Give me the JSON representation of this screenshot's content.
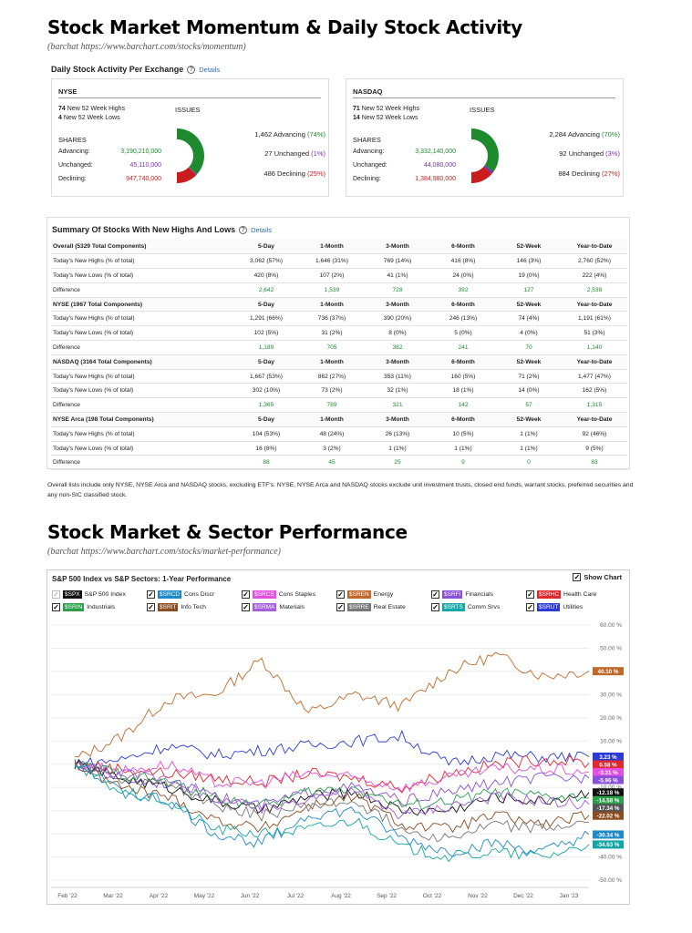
{
  "heading1": "Stock Market Momentum & Daily Stock Activity",
  "source1": "(barchat https://www.barchart.com/stocks/momentum)",
  "daily": {
    "title": "Daily Stock Activity Per Exchange",
    "details": "Details",
    "nyse": {
      "name": "NYSE",
      "highs_num": "74",
      "highs_txt": "New 52 Week Highs",
      "lows_num": "4",
      "lows_txt": "New 52 Week Lows",
      "issues": "ISSUES",
      "shares": "SHARES",
      "advancing_lbl": "Advancing:",
      "unchanged_lbl": "Unchanged:",
      "declining_lbl": "Declining:",
      "advancing_val": "3,190,210,000",
      "unchanged_val": "45,110,000",
      "declining_val": "947,740,000",
      "iss_adv": "1,462 Advancing",
      "iss_adv_pct": "(74%)",
      "iss_unc": "27 Unchanged",
      "iss_unc_pct": "(1%)",
      "iss_dec": "486 Declining",
      "iss_dec_pct": "(25%)",
      "pct": [
        74,
        1,
        25
      ]
    },
    "nasdaq": {
      "name": "NASDAQ",
      "highs_num": "71",
      "highs_txt": "New 52 Week Highs",
      "lows_num": "14",
      "lows_txt": "New 52 Week Lows",
      "issues": "ISSUES",
      "shares": "SHARES",
      "advancing_lbl": "Advancing:",
      "unchanged_lbl": "Unchanged:",
      "declining_lbl": "Declining:",
      "advancing_val": "3,332,140,000",
      "unchanged_val": "44,080,000",
      "declining_val": "1,384,980,000",
      "iss_adv": "2,284 Advancing",
      "iss_adv_pct": "(70%)",
      "iss_unc": "92 Unchanged",
      "iss_unc_pct": "(3%)",
      "iss_dec": "884 Declining",
      "iss_dec_pct": "(27%)",
      "pct": [
        70,
        3,
        27
      ]
    },
    "colors": {
      "advancing": "#1d8a2e",
      "unchanged": "#7b2fb5",
      "declining": "#c91c1c"
    }
  },
  "summary": {
    "title": "Summary Of Stocks With New Highs And Lows",
    "details": "Details",
    "rows": [
      [
        "Overall (5329 Total Components)",
        "5-Day",
        "1-Month",
        "3-Month",
        "6-Month",
        "52-Week",
        "Year-to-Date"
      ],
      [
        "Today's New Highs (% of total)",
        "3,062 (57%)",
        "1,646 (31%)",
        "769 (14%)",
        "416 (8%)",
        "146 (3%)",
        "2,760 (52%)"
      ],
      [
        "Today's New Lows (% of total)",
        "420 (8%)",
        "107 (2%)",
        "41 (1%)",
        "24 (0%)",
        "19 (0%)",
        "222 (4%)"
      ],
      [
        "Difference",
        "2,642",
        "1,539",
        "728",
        "392",
        "127",
        "2,538"
      ],
      [
        "NYSE (1967 Total Components)",
        "5-Day",
        "1-Month",
        "3-Month",
        "6-Month",
        "52-Week",
        "Year-to-Date"
      ],
      [
        "Today's New Highs (% of total)",
        "1,291 (66%)",
        "736 (37%)",
        "390 (20%)",
        "246 (13%)",
        "74 (4%)",
        "1,191 (61%)"
      ],
      [
        "Today's New Lows (% of total)",
        "102 (5%)",
        "31 (2%)",
        "8 (0%)",
        "5 (0%)",
        "4 (0%)",
        "51 (3%)"
      ],
      [
        "Difference",
        "1,189",
        "705",
        "382",
        "241",
        "70",
        "1,140"
      ],
      [
        "NASDAQ (3164 Total Components)",
        "5-Day",
        "1-Month",
        "3-Month",
        "6-Month",
        "52-Week",
        "Year-to-Date"
      ],
      [
        "Today's New Highs (% of total)",
        "1,667 (53%)",
        "862 (27%)",
        "353 (11%)",
        "160 (5%)",
        "71 (2%)",
        "1,477 (47%)"
      ],
      [
        "Today's New Lows (% of total)",
        "302 (10%)",
        "73 (2%)",
        "32 (1%)",
        "18 (1%)",
        "14 (0%)",
        "162 (5%)"
      ],
      [
        "Difference",
        "1,365",
        "789",
        "321",
        "142",
        "57",
        "1,315"
      ],
      [
        "NYSE Arca (198 Total Components)",
        "5-Day",
        "1-Month",
        "3-Month",
        "6-Month",
        "52-Week",
        "Year-to-Date"
      ],
      [
        "Today's New Highs (% of total)",
        "104 (53%)",
        "48 (24%)",
        "26 (13%)",
        "10 (5%)",
        "1 (1%)",
        "92 (46%)"
      ],
      [
        "Today's New Lows (% of total)",
        "16 (8%)",
        "3 (2%)",
        "1 (1%)",
        "1 (1%)",
        "1 (1%)",
        "9 (5%)"
      ],
      [
        "Difference",
        "88",
        "45",
        "25",
        "9",
        "0",
        "83"
      ]
    ]
  },
  "note": "Overall lists include only NYSE, NYSE Arca and NASDAQ stocks, excluding ETF's. NYSE, NYSE Arca and NASDAQ stocks exclude unit investment trusts, closed end funds, warrant stocks, preferred securities and any non-SIC classified stock.",
  "heading2": "Stock Market & Sector Performance",
  "source2": "(barchat https://www.barchart.com/stocks/market-performance)",
  "perf": {
    "title": "S&P 500 Index vs S&P Sectors: 1-Year Performance",
    "show_chart": "Show Chart",
    "legend": [
      [
        {
          "tick": "$SPX",
          "name": "S&P 500 Index",
          "color": "#111111",
          "checked": false
        },
        {
          "tick": "$SRCD",
          "name": "Cons Discr",
          "color": "#1e88c8",
          "checked": true
        },
        {
          "tick": "$SRCS",
          "name": "Cons Staples",
          "color": "#e34fe0",
          "checked": true
        },
        {
          "tick": "$SREN",
          "name": "Energy",
          "color": "#c0692a",
          "checked": true
        },
        {
          "tick": "$SRFI",
          "name": "Financials",
          "color": "#8a4fd8",
          "checked": true
        },
        {
          "tick": "$SRHC",
          "name": "Health Care",
          "color": "#e0262f",
          "checked": true
        }
      ],
      [
        {
          "tick": "$SRIN",
          "name": "Industrials",
          "color": "#2ba04a",
          "checked": true
        },
        {
          "tick": "$SRIT",
          "name": "Info Tech",
          "color": "#8b4d1f",
          "checked": true
        },
        {
          "tick": "$SRMA",
          "name": "Materials",
          "color": "#a65ee0",
          "checked": true
        },
        {
          "tick": "$SRRE",
          "name": "Real Estate",
          "color": "#777777",
          "checked": true
        },
        {
          "tick": "$SRTS",
          "name": "Comm Srvs",
          "color": "#14a6a6",
          "checked": true
        },
        {
          "tick": "$SRUT",
          "name": "Utilities",
          "color": "#2a3ad8",
          "checked": true
        }
      ]
    ]
  },
  "chart_data": {
    "type": "line",
    "title": "S&P 500 Index vs S&P Sectors: 1-Year Performance",
    "x": [
      "Feb '22",
      "Mar '22",
      "Apr '22",
      "May '22",
      "Jun '22",
      "Jul '22",
      "Aug '22",
      "Sep '22",
      "Oct '22",
      "Nov '22",
      "Dec '22",
      "Jan '23"
    ],
    "yticks": [
      "60.00 %",
      "50.00 %",
      "40.00 %",
      "30.00 %",
      "20.00 %",
      "10.00 %",
      "0.00 %",
      "-10.00 %",
      "-20.00 %",
      "-30.00 %",
      "-40.00 %",
      "-50.00 %"
    ],
    "ylim": [
      -50,
      60
    ],
    "series": [
      {
        "name": "Energy",
        "color": "#c0692a",
        "values": [
          2,
          12,
          28,
          30,
          45,
          22,
          30,
          25,
          40,
          47,
          38,
          40.1
        ]
      },
      {
        "name": "Utilities",
        "color": "#2a3ad8",
        "values": [
          0,
          2,
          8,
          4,
          6,
          8,
          10,
          12,
          0,
          4,
          3,
          3.23
        ]
      },
      {
        "name": "Health Care",
        "color": "#e0262f",
        "values": [
          0,
          -2,
          -4,
          -6,
          -8,
          -4,
          -6,
          -10,
          -4,
          0,
          2,
          0.58
        ]
      },
      {
        "name": "Cons Staples",
        "color": "#e34fe0",
        "values": [
          0,
          -3,
          0,
          -8,
          -8,
          -4,
          -6,
          -10,
          -6,
          -2,
          -2,
          -3.31
        ]
      },
      {
        "name": "Financials",
        "color": "#8a4fd8",
        "values": [
          0,
          -6,
          -8,
          -14,
          -18,
          -12,
          -10,
          -16,
          -12,
          -8,
          -6,
          -5.96
        ]
      },
      {
        "name": "S&P 500 Index",
        "color": "#111111",
        "values": [
          0,
          -6,
          -10,
          -16,
          -20,
          -14,
          -12,
          -20,
          -20,
          -14,
          -16,
          -12.18
        ]
      },
      {
        "name": "Industrials",
        "color": "#2ba04a",
        "values": [
          0,
          -4,
          -8,
          -14,
          -18,
          -12,
          -10,
          -18,
          -16,
          -12,
          -14,
          -14.58
        ]
      },
      {
        "name": "Materials",
        "color": "#a65ee0",
        "values": [
          0,
          -4,
          -6,
          -14,
          -20,
          -14,
          -12,
          -22,
          -18,
          -14,
          -16,
          -17.34
        ]
      },
      {
        "name": "Info Tech",
        "color": "#8b4d1f",
        "values": [
          0,
          -10,
          -14,
          -24,
          -28,
          -18,
          -14,
          -26,
          -28,
          -22,
          -26,
          -22.02
        ]
      },
      {
        "name": "Real Estate",
        "color": "#777777",
        "values": [
          0,
          -6,
          -8,
          -18,
          -22,
          -18,
          -16,
          -28,
          -32,
          -26,
          -28,
          -25
        ]
      },
      {
        "name": "Cons Discr",
        "color": "#1e88c8",
        "values": [
          0,
          -12,
          -16,
          -30,
          -34,
          -22,
          -20,
          -32,
          -38,
          -34,
          -38,
          -30.34
        ]
      },
      {
        "name": "Comm Srvs",
        "color": "#14a6a6",
        "values": [
          0,
          -12,
          -16,
          -28,
          -30,
          -28,
          -24,
          -36,
          -40,
          -38,
          -40,
          -34.63
        ]
      }
    ],
    "end_labels": [
      {
        "text": "40.10 %",
        "value": 40.1,
        "color": "#c0692a"
      },
      {
        "text": "3.23 %",
        "value": 3.23,
        "color": "#2a3ad8"
      },
      {
        "text": "0.58 %",
        "value": 0.58,
        "color": "#e0262f"
      },
      {
        "text": "-3.31 %",
        "value": -3.31,
        "color": "#e34fe0"
      },
      {
        "text": "-5.96 %",
        "value": -5.96,
        "color": "#8a4fd8"
      },
      {
        "text": "-12.18 %",
        "value": -12.18,
        "color": "#111111"
      },
      {
        "text": "-14.58 %",
        "value": -14.58,
        "color": "#2ba04a"
      },
      {
        "text": "-17.34 %",
        "value": -17.34,
        "color": "#555555"
      },
      {
        "text": "-22.02 %",
        "value": -22.02,
        "color": "#8b4d1f"
      },
      {
        "text": "-30.34 %",
        "value": -30.34,
        "color": "#1e88c8"
      },
      {
        "text": "-34.63 %",
        "value": -34.63,
        "color": "#14a6a6"
      }
    ]
  }
}
